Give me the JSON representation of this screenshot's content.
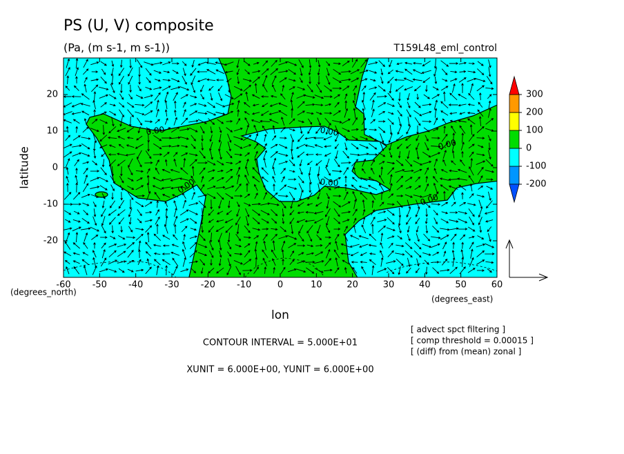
{
  "chart_data": {
    "type": "contour",
    "title": "PS (U, V) composite",
    "subtitle": "(Pa, (m s-1, m s-1))",
    "run_name": "T159L48_eml_control",
    "x_label": "lon",
    "y_label": "latitude",
    "x_unit_label": "(degrees_east)",
    "y_unit_label": "(degrees_north)",
    "xlim": [
      -60,
      60
    ],
    "ylim": [
      -30,
      30
    ],
    "xticks": [
      -60,
      -50,
      -40,
      -30,
      -20,
      -10,
      0,
      10,
      20,
      30,
      40,
      50,
      60
    ],
    "yticks": [
      -20,
      -10,
      0,
      10,
      20
    ],
    "colorbar": {
      "ticks": [
        -200,
        -100,
        0,
        100,
        200,
        300
      ],
      "colors": [
        "#0050ff",
        "#0096ff",
        "#00ffff",
        "#00dc00",
        "#ffff00",
        "#ff9900",
        "#ff0000"
      ]
    },
    "contour_labels": [
      "0.00",
      "0.00",
      "0.00",
      "0.00",
      "0.00",
      "0.00"
    ],
    "notes": [
      "[ advect spct filtering ]",
      "[ comp threshold = 0.00015 ]",
      "[ (diff) from (mean) zonal ]"
    ],
    "contour_interval": "CONTOUR INTERVAL = 5.000E+01",
    "vector_units": "XUNIT = 6.000E+00, YUNIT = 6.000E+00"
  }
}
